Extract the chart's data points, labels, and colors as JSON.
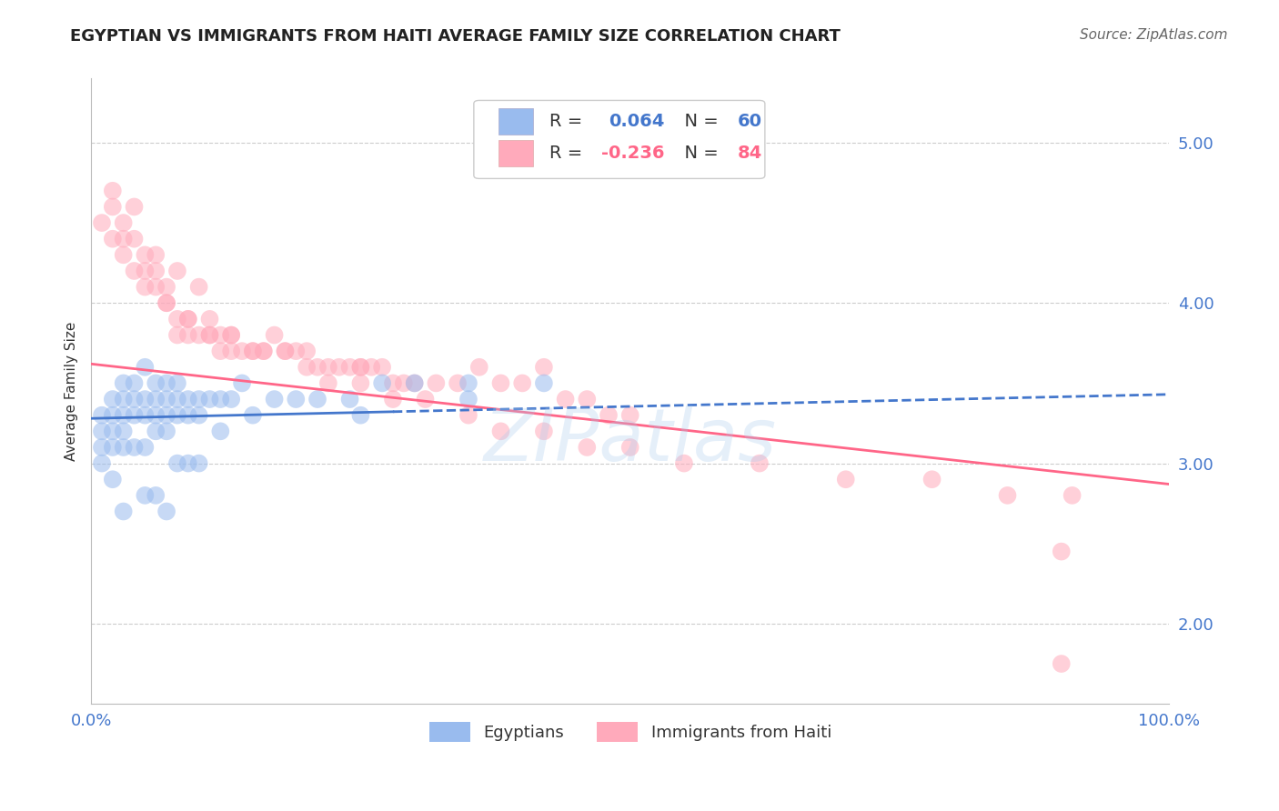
{
  "title": "EGYPTIAN VS IMMIGRANTS FROM HAITI AVERAGE FAMILY SIZE CORRELATION CHART",
  "source_text": "Source: ZipAtlas.com",
  "ylabel": "Average Family Size",
  "watermark": "ZIPatlas",
  "xlim": [
    0.0,
    100.0
  ],
  "ylim": [
    1.5,
    5.4
  ],
  "yticks": [
    2.0,
    3.0,
    4.0,
    5.0
  ],
  "xticks": [
    0.0,
    100.0
  ],
  "xticklabels": [
    "0.0%",
    "100.0%"
  ],
  "color_blue": "#99BBEE",
  "color_pink": "#FFAABB",
  "color_blue_line": "#4477CC",
  "color_pink_line": "#FF6688",
  "color_blue_text": "#4477CC",
  "color_pink_text": "#FF6688",
  "background_color": "#ffffff",
  "grid_color": "#cccccc",
  "title_fontsize": 13,
  "axis_label_fontsize": 11,
  "tick_fontsize": 13,
  "source_fontsize": 11,
  "legend_label1": "Egyptians",
  "legend_label2": "Immigrants from Haiti",
  "blue_line_x": [
    0,
    100
  ],
  "blue_line_y": [
    3.28,
    3.43
  ],
  "pink_line_x": [
    0,
    100
  ],
  "pink_line_y": [
    3.62,
    2.87
  ],
  "blue_scatter_x": [
    1,
    1,
    1,
    1,
    2,
    2,
    2,
    2,
    2,
    3,
    3,
    3,
    3,
    3,
    4,
    4,
    4,
    4,
    5,
    5,
    5,
    5,
    6,
    6,
    6,
    6,
    7,
    7,
    7,
    7,
    8,
    8,
    8,
    9,
    9,
    10,
    10,
    11,
    12,
    13,
    14,
    15,
    17,
    19,
    21,
    24,
    27,
    30,
    35,
    42,
    3,
    5,
    6,
    7,
    8,
    9,
    10,
    12,
    25,
    35
  ],
  "blue_scatter_y": [
    3.3,
    3.2,
    3.1,
    3.0,
    3.4,
    3.3,
    3.2,
    3.1,
    2.9,
    3.5,
    3.4,
    3.3,
    3.2,
    3.1,
    3.5,
    3.4,
    3.3,
    3.1,
    3.6,
    3.4,
    3.3,
    3.1,
    3.5,
    3.4,
    3.3,
    3.2,
    3.5,
    3.4,
    3.3,
    3.2,
    3.5,
    3.4,
    3.3,
    3.4,
    3.3,
    3.4,
    3.3,
    3.4,
    3.4,
    3.4,
    3.5,
    3.3,
    3.4,
    3.4,
    3.4,
    3.4,
    3.5,
    3.5,
    3.4,
    3.5,
    2.7,
    2.8,
    2.8,
    2.7,
    3.0,
    3.0,
    3.0,
    3.2,
    3.3,
    3.5
  ],
  "pink_scatter_x": [
    1,
    2,
    2,
    3,
    3,
    4,
    4,
    5,
    5,
    6,
    6,
    7,
    7,
    8,
    8,
    9,
    9,
    10,
    10,
    11,
    11,
    12,
    12,
    13,
    13,
    14,
    15,
    16,
    17,
    18,
    19,
    20,
    21,
    22,
    23,
    24,
    25,
    26,
    27,
    28,
    29,
    30,
    32,
    34,
    36,
    38,
    40,
    42,
    44,
    46,
    48,
    50,
    3,
    5,
    7,
    9,
    11,
    13,
    16,
    18,
    20,
    22,
    25,
    28,
    31,
    35,
    38,
    42,
    46,
    50,
    55,
    62,
    70,
    78,
    85,
    91,
    2,
    4,
    6,
    8,
    15,
    25,
    90,
    90
  ],
  "pink_scatter_y": [
    4.5,
    4.6,
    4.4,
    4.5,
    4.3,
    4.4,
    4.2,
    4.3,
    4.1,
    4.2,
    4.1,
    4.1,
    4.0,
    3.9,
    3.8,
    3.9,
    3.8,
    3.8,
    4.1,
    3.8,
    3.9,
    3.8,
    3.7,
    3.8,
    3.7,
    3.7,
    3.7,
    3.7,
    3.8,
    3.7,
    3.7,
    3.7,
    3.6,
    3.6,
    3.6,
    3.6,
    3.6,
    3.6,
    3.6,
    3.5,
    3.5,
    3.5,
    3.5,
    3.5,
    3.6,
    3.5,
    3.5,
    3.6,
    3.4,
    3.4,
    3.3,
    3.3,
    4.4,
    4.2,
    4.0,
    3.9,
    3.8,
    3.8,
    3.7,
    3.7,
    3.6,
    3.5,
    3.5,
    3.4,
    3.4,
    3.3,
    3.2,
    3.2,
    3.1,
    3.1,
    3.0,
    3.0,
    2.9,
    2.9,
    2.8,
    2.8,
    4.7,
    4.6,
    4.3,
    4.2,
    3.7,
    3.6,
    1.75,
    2.45
  ]
}
